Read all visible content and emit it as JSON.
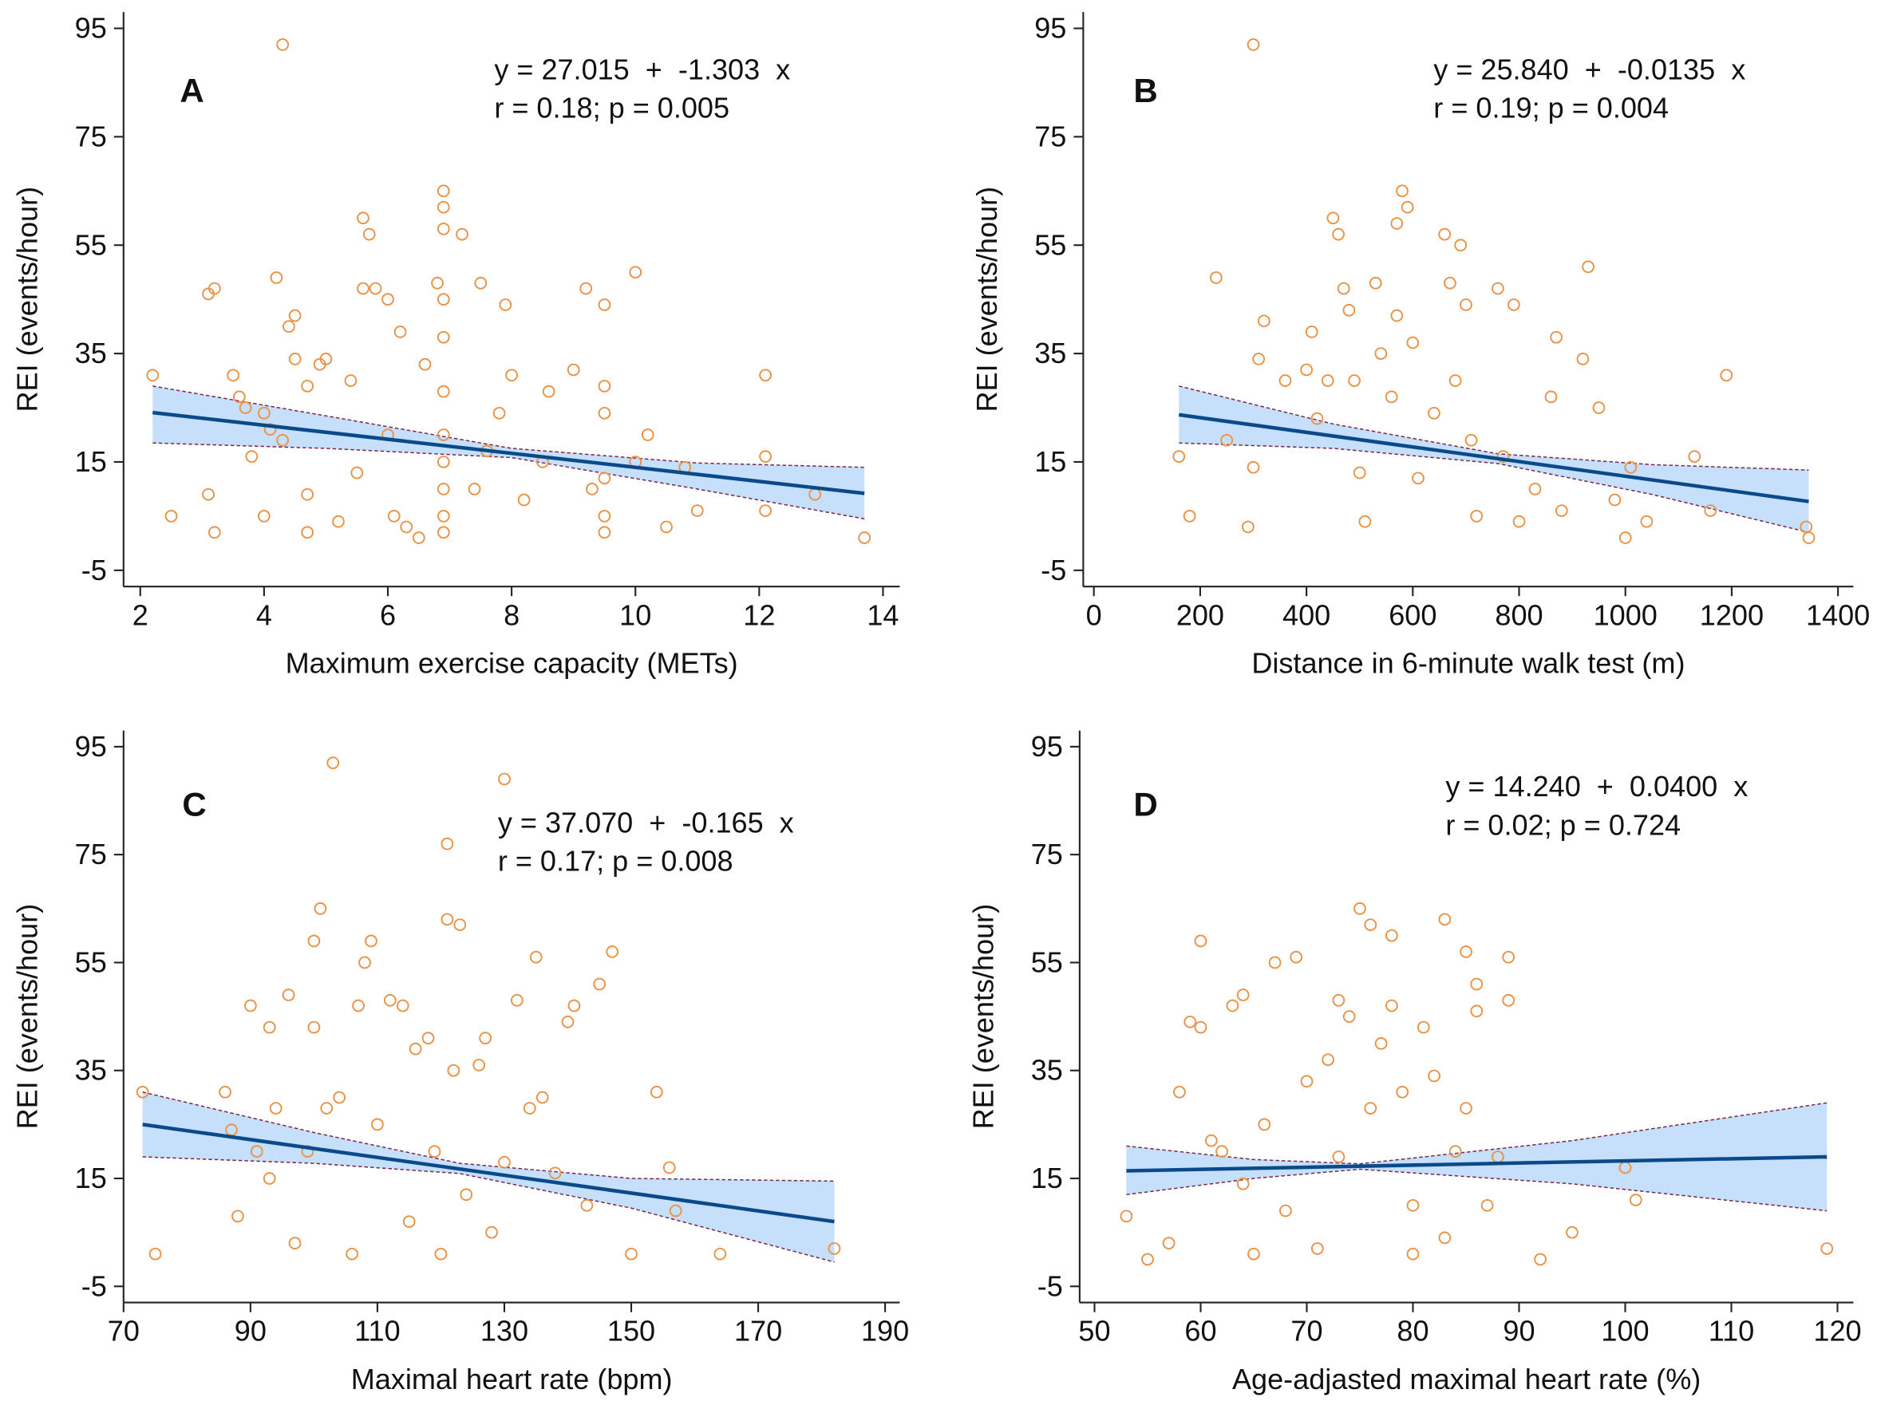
{
  "chart_data": [
    {
      "type": "scatter",
      "label": "A",
      "annotation": [
        "y = 27.015  +  -1.303  x",
        "r = 0.18; p = 0.005"
      ],
      "xlabel": "Maximum exercise capacity (METs)",
      "ylabel": "REI (events/hour)",
      "xlim": [
        1.73,
        14.27
      ],
      "xticks": [
        2,
        4,
        6,
        8,
        10,
        12,
        14
      ],
      "ylim": [
        -8,
        98
      ],
      "yticks": [
        95,
        75,
        55,
        35,
        15,
        -5
      ],
      "color": "#e8944a",
      "fit_color": "#0b4a8a",
      "band_color": "#c6e0fb",
      "x": [
        4.3,
        2.2,
        2.5,
        3.1,
        3.1,
        3.2,
        3.2,
        3.5,
        3.6,
        3.7,
        3.8,
        4,
        4,
        4.1,
        4.2,
        4.3,
        4.4,
        4.5,
        4.5,
        4.7,
        4.7,
        4.7,
        4.9,
        5,
        5.2,
        5.4,
        5.5,
        5.6,
        5.6,
        5.7,
        5.8,
        6,
        6,
        6.1,
        6.2,
        6.3,
        6.5,
        6.6,
        6.8,
        6.9,
        6.9,
        6.9,
        6.9,
        6.9,
        6.9,
        6.9,
        6.9,
        6.9,
        6.9,
        6.9,
        7.2,
        7.4,
        7.5,
        7.6,
        7.8,
        7.9,
        8,
        8.2,
        8.5,
        8.6,
        9,
        9.2,
        9.3,
        9.5,
        9.5,
        9.5,
        9.5,
        9.5,
        9.5,
        10,
        10,
        10.2,
        10.5,
        10.8,
        11,
        12.1,
        12.1,
        12.1,
        12.9,
        13.7
      ],
      "values": [
        92,
        31,
        5,
        9,
        46,
        47,
        2,
        31,
        27,
        25,
        16,
        24,
        5,
        21,
        49,
        19,
        40,
        34,
        42,
        29,
        9,
        2,
        33,
        34,
        4,
        30,
        13,
        60,
        47,
        57,
        47,
        45,
        20,
        5,
        39,
        3,
        1,
        33,
        48,
        65,
        62,
        58,
        45,
        38,
        28,
        20,
        15,
        10,
        5,
        2,
        57,
        10,
        48,
        17,
        24,
        44,
        31,
        8,
        15,
        28,
        32,
        47,
        10,
        44,
        29,
        24,
        12,
        5,
        2,
        50,
        15,
        20,
        3,
        14,
        6,
        31,
        16,
        6,
        9,
        1
      ],
      "fit_x": [
        2.2,
        13.7
      ],
      "fit_y": [
        24.1,
        9.2
      ],
      "band_x": [
        2.2,
        5,
        8,
        11,
        13.7
      ],
      "band_upper": [
        29,
        23.5,
        17.5,
        14.8,
        14
      ],
      "band_lower": [
        18.5,
        17.5,
        15.8,
        10,
        4.5
      ]
    },
    {
      "type": "scatter",
      "label": "B",
      "annotation": [
        "y = 25.840  +  -0.0135  x",
        "r = 0.19; p = 0.004"
      ],
      "xlabel": "Distance in 6-minute walk test (m)",
      "ylabel": "REI (events/hour)",
      "xlim": [
        -20,
        1429
      ],
      "xticks": [
        0,
        200,
        400,
        600,
        800,
        1000,
        1200,
        1400
      ],
      "ylim": [
        -8,
        98
      ],
      "yticks": [
        95,
        75,
        55,
        35,
        15,
        -5
      ],
      "color": "#e8944a",
      "fit_color": "#0b4a8a",
      "band_color": "#c6e0fb",
      "x": [
        300,
        160,
        180,
        230,
        250,
        290,
        300,
        310,
        320,
        360,
        400,
        410,
        420,
        440,
        450,
        460,
        470,
        480,
        490,
        500,
        510,
        530,
        540,
        560,
        570,
        570,
        580,
        590,
        600,
        610,
        640,
        660,
        670,
        680,
        690,
        700,
        710,
        720,
        760,
        770,
        790,
        800,
        830,
        860,
        870,
        880,
        920,
        930,
        950,
        980,
        1000,
        1010,
        1040,
        1130,
        1160,
        1190,
        1340,
        1345
      ],
      "values": [
        92,
        16,
        5,
        49,
        19,
        3,
        14,
        34,
        41,
        30,
        32,
        39,
        23,
        30,
        60,
        57,
        47,
        43,
        30,
        13,
        4,
        48,
        35,
        27,
        42,
        59,
        65,
        62,
        37,
        12,
        24,
        57,
        48,
        30,
        55,
        44,
        19,
        5,
        47,
        16,
        44,
        4,
        10,
        27,
        38,
        6,
        34,
        51,
        25,
        8,
        1,
        14,
        4,
        16,
        6,
        31,
        3,
        1
      ],
      "fit_x": [
        160,
        1345
      ],
      "fit_y": [
        23.7,
        7.7
      ],
      "band_x": [
        160,
        450,
        760,
        1050,
        1345
      ],
      "band_upper": [
        29,
        22,
        16.5,
        14.5,
        13.5
      ],
      "band_lower": [
        18.5,
        17.5,
        14.7,
        9,
        2
      ]
    },
    {
      "type": "scatter",
      "label": "C",
      "annotation": [
        "y = 37.070  +  -0.165  x",
        "r = 0.17; p = 0.008"
      ],
      "xlabel": "Maximal heart rate (bpm)",
      "ylabel": "REI (events/hour)",
      "xlim": [
        70,
        192.3
      ],
      "xticks": [
        70,
        90,
        110,
        130,
        150,
        170,
        190
      ],
      "ylim": [
        -8,
        98
      ],
      "yticks": [
        95,
        75,
        55,
        35,
        15,
        -5
      ],
      "color": "#e8944a",
      "fit_color": "#0b4a8a",
      "band_color": "#c6e0fb",
      "x": [
        103,
        130,
        73,
        75,
        86,
        87,
        88,
        90,
        91,
        93,
        93,
        94,
        96,
        97,
        99,
        100,
        100,
        101,
        102,
        104,
        106,
        107,
        108,
        109,
        110,
        112,
        114,
        115,
        116,
        118,
        119,
        120,
        121,
        121,
        122,
        123,
        124,
        126,
        127,
        128,
        130,
        132,
        134,
        135,
        136,
        138,
        140,
        141,
        143,
        145,
        147,
        150,
        154,
        156,
        157,
        164,
        182
      ],
      "values": [
        92,
        89,
        31,
        1,
        31,
        24,
        8,
        47,
        20,
        43,
        15,
        28,
        49,
        3,
        20,
        59,
        43,
        65,
        28,
        30,
        1,
        47,
        55,
        59,
        25,
        48,
        47,
        7,
        39,
        41,
        20,
        1,
        77,
        63,
        35,
        62,
        12,
        36,
        41,
        5,
        18,
        48,
        28,
        56,
        30,
        16,
        44,
        47,
        10,
        51,
        57,
        1,
        31,
        17,
        9,
        1,
        2
      ],
      "fit_x": [
        73,
        182
      ],
      "fit_y": [
        25.0,
        7.0
      ],
      "band_x": [
        73,
        100,
        123,
        150,
        182
      ],
      "band_upper": [
        31,
        23.5,
        17.8,
        15,
        14.5
      ],
      "band_lower": [
        19,
        17.8,
        15.9,
        9.5,
        -0.5
      ]
    },
    {
      "type": "scatter",
      "label": "D",
      "annotation": [
        "y = 14.240  +  0.0400  x",
        "r = 0.02; p = 0.724"
      ],
      "xlabel": "Age-adjasted maximal heart rate (%)",
      "ylabel": "REI (events/hour)",
      "xlim": [
        48.6,
        121.5
      ],
      "xticks": [
        50,
        60,
        70,
        80,
        90,
        100,
        110,
        120
      ],
      "ylim": [
        -8,
        98
      ],
      "yticks": [
        95,
        75,
        55,
        35,
        15,
        -5
      ],
      "color": "#e8944a",
      "fit_color": "#0b4a8a",
      "band_color": "#c6e0fb",
      "x": [
        53,
        55,
        57,
        58,
        59,
        60,
        60,
        61,
        62,
        63,
        64,
        64,
        65,
        66,
        67,
        68,
        69,
        70,
        71,
        72,
        73,
        73,
        74,
        75,
        76,
        76,
        77,
        78,
        78,
        79,
        80,
        80,
        81,
        82,
        83,
        83,
        84,
        85,
        85,
        86,
        86,
        87,
        88,
        89,
        89,
        92,
        95,
        100,
        101,
        119
      ],
      "values": [
        8,
        0,
        3,
        31,
        44,
        43,
        59,
        22,
        20,
        47,
        49,
        14,
        1,
        25,
        55,
        9,
        56,
        33,
        2,
        37,
        48,
        19,
        45,
        65,
        62,
        28,
        40,
        60,
        47,
        31,
        10,
        1,
        43,
        34,
        63,
        4,
        20,
        57,
        28,
        51,
        46,
        10,
        19,
        56,
        48,
        0,
        5,
        17,
        11,
        2
      ],
      "fit_x": [
        53,
        119
      ],
      "fit_y": [
        16.4,
        19.0
      ],
      "band_x": [
        53,
        65,
        75,
        95,
        119
      ],
      "band_upper": [
        21,
        18.5,
        17.7,
        22,
        29
      ],
      "band_lower": [
        12,
        15,
        16.7,
        14,
        9
      ]
    }
  ]
}
